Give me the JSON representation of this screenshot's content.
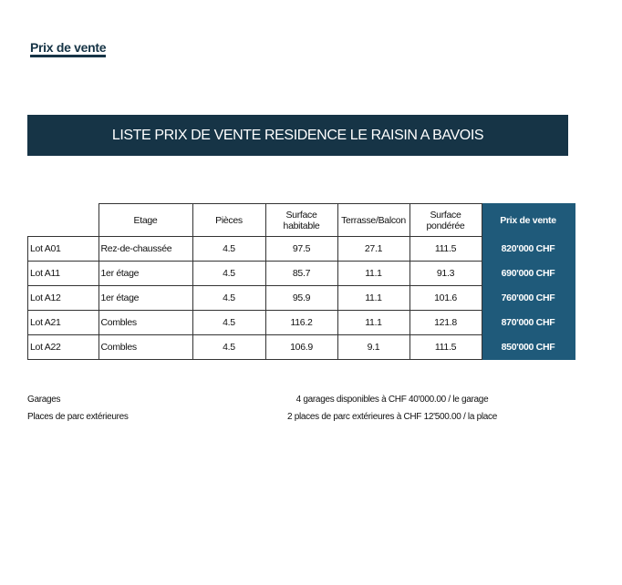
{
  "title": "Prix de vente",
  "banner": "LISTE PRIX DE VENTE RESIDENCE LE RAISIN A BAVOIS",
  "colors": {
    "dark_blue": "#163446",
    "price_blue": "#1f5a7a"
  },
  "table": {
    "headers": [
      "",
      "Etage",
      "Pièces",
      "Surface habitable",
      "Terrasse/Balcon",
      "Surface pondérée",
      "Prix de vente"
    ],
    "rows": [
      [
        "Lot A01",
        "Rez-de-chaussée",
        "4.5",
        "97.5",
        "27.1",
        "111.5",
        "820'000 CHF"
      ],
      [
        "Lot A11",
        "1er étage",
        "4.5",
        "85.7",
        "11.1",
        "91.3",
        "690'000 CHF"
      ],
      [
        "Lot A12",
        "1er étage",
        "4.5",
        "95.9",
        "11.1",
        "101.6",
        "760'000 CHF"
      ],
      [
        "Lot A21",
        "Combles",
        "4.5",
        "116.2",
        "11.1",
        "121.8",
        "870'000 CHF"
      ],
      [
        "Lot A22",
        "Combles",
        "4.5",
        "106.9",
        "9.1",
        "111.5",
        "850'000 CHF"
      ]
    ]
  },
  "footer": [
    {
      "label": "Garages",
      "value": "4 garages disponibles à CHF 40'000.00 / le garage"
    },
    {
      "label": "Places de parc extérieures",
      "value": "2 places de parc extérieures à CHF 12'500.00 / la place"
    }
  ]
}
